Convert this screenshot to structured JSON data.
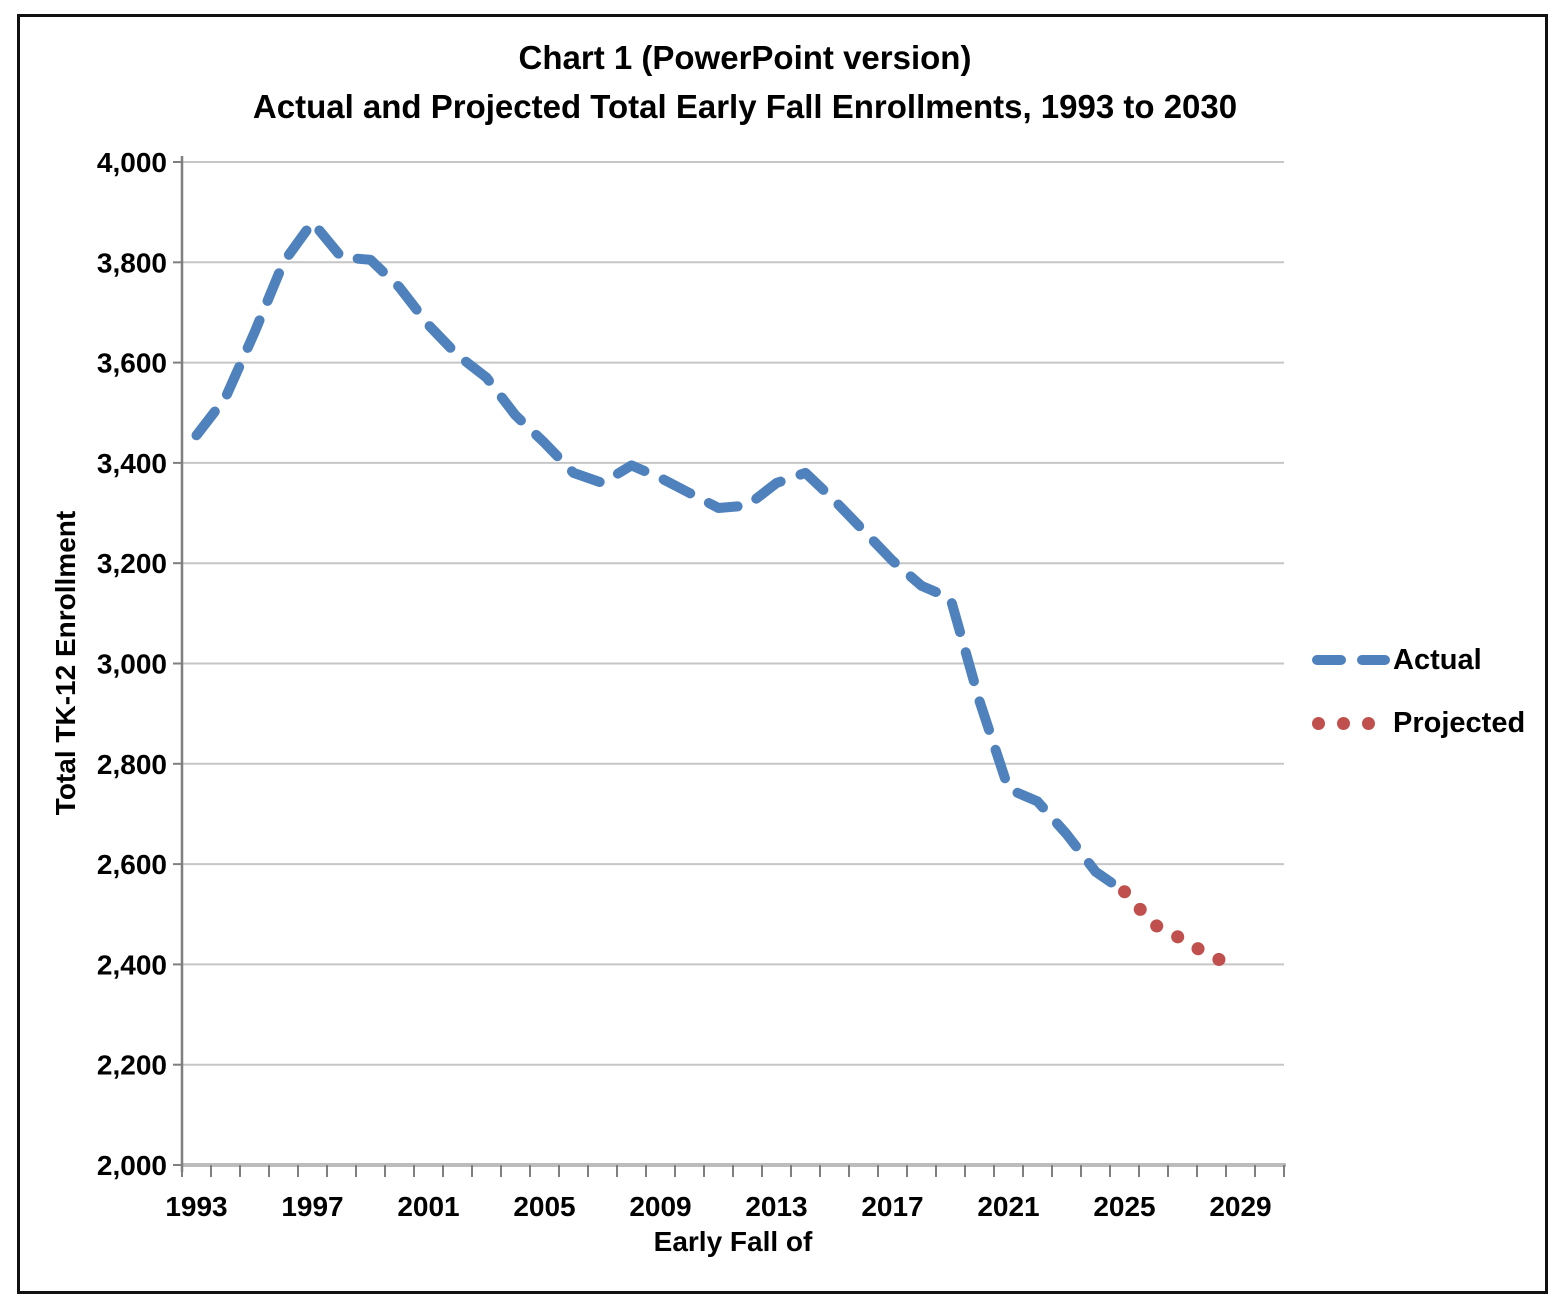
{
  "chart_data": {
    "type": "line",
    "title": "Chart 1 (PowerPoint version)",
    "subtitle": "Actual and Projected Total Early Fall Enrollments, 1993 to 2030",
    "xlabel": "Early Fall of",
    "ylabel": "Total TK-12 Enrollment",
    "ylim": [
      2000,
      4000
    ],
    "x_range": [
      1993,
      2030
    ],
    "grid": true,
    "legend_position": "right",
    "grid_color": "#c6c6c6",
    "x_axis_line_color": "#bcbcbc",
    "y_axis_line_color": "#7f7f7f",
    "tick_color": "#7f7f7f",
    "y_tick_values": [
      2000,
      2200,
      2400,
      2600,
      2800,
      3000,
      3200,
      3400,
      3600,
      3800,
      4000
    ],
    "y_tick_labels": [
      "2,000",
      "2,200",
      "2,400",
      "2,600",
      "2,800",
      "3,000",
      "3,200",
      "3,400",
      "3,600",
      "3,800",
      "4,000"
    ],
    "x_tick_years": [
      1993,
      1997,
      2001,
      2005,
      2009,
      2013,
      2017,
      2021,
      2025,
      2029
    ],
    "x_tick_labels": [
      "1993",
      "1997",
      "2001",
      "2005",
      "2009",
      "2013",
      "2017",
      "2021",
      "2025",
      "2029"
    ],
    "series": [
      {
        "name": "Actual",
        "color": "#4F81BD",
        "style": "dashed",
        "x": [
          1993,
          1994,
          1995,
          1996,
          1997,
          1998,
          1999,
          2000,
          2001,
          2002,
          2003,
          2004,
          2005,
          2006,
          2007,
          2008,
          2009,
          2010,
          2011,
          2012,
          2013,
          2014,
          2015,
          2016,
          2017,
          2018,
          2019,
          2020,
          2021,
          2022,
          2023,
          2024,
          2025
        ],
        "values": [
          3455,
          3530,
          3660,
          3800,
          3880,
          3810,
          3805,
          3750,
          3675,
          3615,
          3570,
          3495,
          3440,
          3380,
          3360,
          3395,
          3370,
          3340,
          3310,
          3315,
          3360,
          3380,
          3325,
          3265,
          3205,
          3155,
          3130,
          2925,
          2750,
          2725,
          2660,
          2585,
          2545
        ]
      },
      {
        "name": "Projected",
        "color": "#C0504D",
        "style": "dotted",
        "x": [
          2025,
          2026,
          2027,
          2028,
          2029
        ],
        "values": [
          2545,
          2480,
          2450,
          2415,
          2395
        ]
      }
    ]
  }
}
